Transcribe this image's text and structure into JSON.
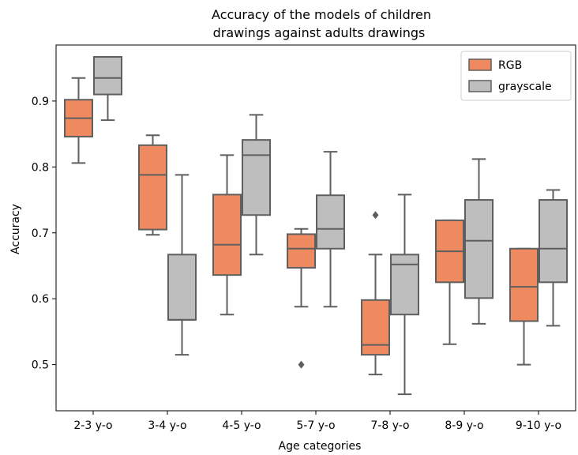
{
  "chart_data": {
    "type": "box",
    "title": [
      "Accuracy of the models of children",
      "drawings against adults drawings"
    ],
    "xlabel": "Age categories",
    "ylabel": "Accuracy",
    "ylim": [
      0.43,
      0.985
    ],
    "yticks": [
      0.5,
      0.6,
      0.7,
      0.8,
      0.9
    ],
    "ytick_labels": [
      "0.5",
      "0.6",
      "0.7",
      "0.8",
      "0.9"
    ],
    "categories": [
      "2-3 y-o",
      "3-4 y-o",
      "4-5 y-o",
      "5-7 y-o",
      "7-8 y-o",
      "8-9 y-o",
      "9-10 y-o"
    ],
    "legend_position": "top-right",
    "grid": false,
    "series": [
      {
        "name": "RGB",
        "color": "#EE8960",
        "boxes": [
          {
            "whislo": 0.806,
            "q1": 0.846,
            "med": 0.874,
            "q3": 0.902,
            "whishi": 0.935,
            "fliers": []
          },
          {
            "whislo": 0.697,
            "q1": 0.705,
            "med": 0.788,
            "q3": 0.833,
            "whishi": 0.848,
            "fliers": []
          },
          {
            "whislo": 0.576,
            "q1": 0.636,
            "med": 0.682,
            "q3": 0.758,
            "whishi": 0.818,
            "fliers": []
          },
          {
            "whislo": 0.588,
            "q1": 0.647,
            "med": 0.676,
            "q3": 0.698,
            "whishi": 0.706,
            "fliers": [
              0.5
            ]
          },
          {
            "whislo": 0.485,
            "q1": 0.515,
            "med": 0.53,
            "q3": 0.598,
            "whishi": 0.667,
            "fliers": [
              0.727
            ]
          },
          {
            "whislo": 0.531,
            "q1": 0.625,
            "med": 0.672,
            "q3": 0.719,
            "whishi": 0.719,
            "fliers": []
          },
          {
            "whislo": 0.5,
            "q1": 0.566,
            "med": 0.618,
            "q3": 0.676,
            "whishi": 0.676,
            "fliers": []
          }
        ]
      },
      {
        "name": "grayscale",
        "color": "#BEBEBE",
        "boxes": [
          {
            "whislo": 0.871,
            "q1": 0.91,
            "med": 0.935,
            "q3": 0.967,
            "whishi": 0.967,
            "fliers": []
          },
          {
            "whislo": 0.515,
            "q1": 0.568,
            "med": 0.568,
            "q3": 0.667,
            "whishi": 0.788,
            "fliers": []
          },
          {
            "whislo": 0.667,
            "q1": 0.727,
            "med": 0.818,
            "q3": 0.841,
            "whishi": 0.879,
            "fliers": []
          },
          {
            "whislo": 0.588,
            "q1": 0.676,
            "med": 0.706,
            "q3": 0.757,
            "whishi": 0.823,
            "fliers": []
          },
          {
            "whislo": 0.455,
            "q1": 0.576,
            "med": 0.652,
            "q3": 0.667,
            "whishi": 0.758,
            "fliers": []
          },
          {
            "whislo": 0.562,
            "q1": 0.601,
            "med": 0.688,
            "q3": 0.75,
            "whishi": 0.812,
            "fliers": []
          },
          {
            "whislo": 0.559,
            "q1": 0.625,
            "med": 0.676,
            "q3": 0.75,
            "whishi": 0.765,
            "fliers": []
          }
        ]
      }
    ]
  }
}
